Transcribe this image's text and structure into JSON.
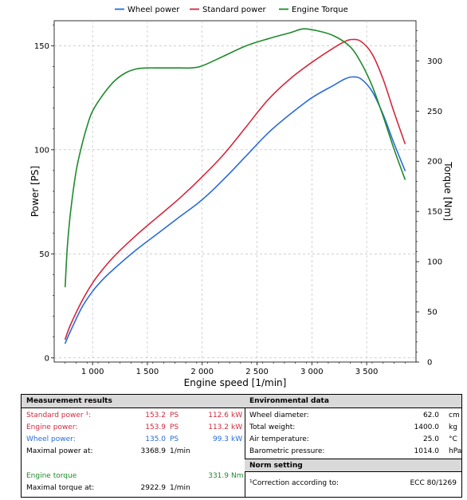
{
  "chart_data": {
    "type": "line",
    "xlabel": "Engine speed [1/min]",
    "ylabel_left": "Power [PS]",
    "ylabel_right": "Torque [Nm]",
    "xlim": [
      650,
      3950
    ],
    "ylim_left": [
      -2,
      162
    ],
    "ylim_right": [
      0,
      340
    ],
    "x_ticks": [
      1000,
      1500,
      2000,
      2500,
      3000,
      3500
    ],
    "x_tick_labels": [
      "1 000",
      "1 500",
      "2 000",
      "2 500",
      "3 000",
      "3 500"
    ],
    "y_left_ticks": [
      0,
      50,
      100,
      150
    ],
    "y_left_tick_labels": [
      "0",
      "50",
      "100",
      "150"
    ],
    "y_right_ticks": [
      0,
      50,
      100,
      150,
      200,
      250,
      300
    ],
    "y_right_tick_labels": [
      "0",
      "50",
      "100",
      "150",
      "200",
      "250",
      "300"
    ],
    "grid": true,
    "legend_position": "top",
    "colors": {
      "wheel": "#2a6bd8",
      "standard": "#d4283c",
      "torque": "#1f8a2c"
    },
    "series": [
      {
        "name": "Wheel power",
        "axis": "left",
        "color": "#2a6bd8",
        "x": [
          750,
          800,
          900,
          1000,
          1100,
          1200,
          1400,
          1600,
          1800,
          2000,
          2200,
          2400,
          2600,
          2800,
          3000,
          3200,
          3300,
          3369,
          3450,
          3550,
          3650,
          3750,
          3850
        ],
        "values": [
          7,
          13,
          24,
          32,
          38,
          43,
          52,
          60,
          68,
          76,
          86,
          97,
          108,
          117,
          125,
          131,
          134,
          135,
          134,
          128,
          117,
          103,
          90
        ]
      },
      {
        "name": "Standard power",
        "axis": "left",
        "color": "#d4283c",
        "x": [
          750,
          800,
          900,
          1000,
          1100,
          1200,
          1400,
          1600,
          1800,
          2000,
          2200,
          2400,
          2600,
          2800,
          3000,
          3200,
          3300,
          3369,
          3450,
          3550,
          3650,
          3750,
          3850
        ],
        "values": [
          9,
          16,
          27,
          36,
          43,
          49,
          59,
          68,
          77,
          87,
          98,
          111,
          124,
          134,
          142,
          149,
          152,
          153,
          152,
          146,
          134,
          118,
          103
        ]
      },
      {
        "name": "Engine Torque",
        "axis": "right",
        "color": "#1f8a2c",
        "x": [
          750,
          770,
          800,
          850,
          900,
          950,
          1000,
          1100,
          1200,
          1300,
          1400,
          1500,
          1600,
          1700,
          1800,
          1900,
          2000,
          2200,
          2400,
          2600,
          2800,
          2923,
          3050,
          3200,
          3350,
          3450,
          3550,
          3650,
          3750,
          3850
        ],
        "values": [
          75,
          115,
          150,
          190,
          215,
          235,
          250,
          267,
          280,
          288,
          292,
          293,
          293,
          293,
          293,
          293,
          295,
          305,
          315,
          322,
          328,
          331.9,
          330,
          325,
          314,
          298,
          275,
          245,
          212,
          182
        ]
      }
    ]
  },
  "results": {
    "measurement": {
      "title": "Measurement results",
      "rows": [
        {
          "label": "Standard power ¹:",
          "v1": "153.2",
          "u1": "PS",
          "v2": "112.6",
          "u2": "kW"
        },
        {
          "label": "Engine power:",
          "v1": "153.9",
          "u1": "PS",
          "v2": "113.2",
          "u2": "kW"
        },
        {
          "label": "Wheel power:",
          "v1": "135.0",
          "u1": "PS",
          "v2": "99.3",
          "u2": "kW"
        },
        {
          "label": "Maximal power at:",
          "v1": "3368.9",
          "u1": "1/min",
          "v2": "",
          "u2": ""
        },
        {
          "label": "Engine torque",
          "v1": "",
          "u1": "",
          "v2": "331.9",
          "u2": "Nm"
        },
        {
          "label": "Maximal torque at:",
          "v1": "2922.9",
          "u1": "1/min",
          "v2": "",
          "u2": ""
        }
      ]
    },
    "environment": {
      "title": "Environmental data",
      "rows": [
        {
          "label": "Wheel diameter:",
          "value": "62.0",
          "unit": "cm"
        },
        {
          "label": "Total weight:",
          "value": "1400.0",
          "unit": "kg"
        },
        {
          "label": "Air temperature:",
          "value": "25.0",
          "unit": "°C"
        },
        {
          "label": "Barometric pressure:",
          "value": "1014.0",
          "unit": "hPa"
        }
      ]
    },
    "norm": {
      "title": "Norm setting",
      "label": "¹Correction according to:",
      "value": "ECC 80/1269"
    }
  }
}
